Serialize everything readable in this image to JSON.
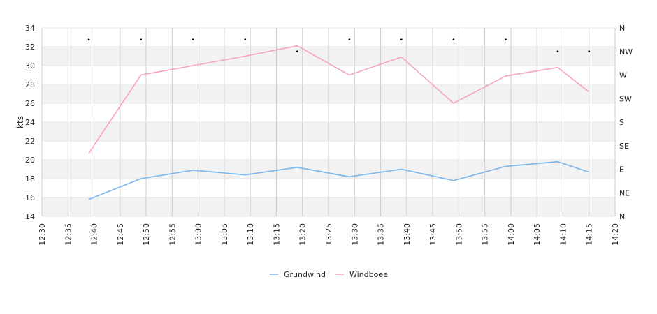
{
  "chart_data": {
    "type": "line",
    "xlabel": "",
    "ylabel": "kts",
    "ylim": [
      14,
      34
    ],
    "y_ticks": [
      14,
      16,
      18,
      20,
      22,
      24,
      26,
      28,
      30,
      32,
      34
    ],
    "x_ticks": [
      "12:30",
      "12:35",
      "12:40",
      "12:45",
      "12:50",
      "12:55",
      "13:00",
      "13:05",
      "13:10",
      "13:15",
      "13:20",
      "13:25",
      "13:30",
      "13:35",
      "13:40",
      "13:45",
      "13:50",
      "13:55",
      "14:00",
      "14:05",
      "14:10",
      "14:15",
      "14:20"
    ],
    "xlim_minutes": [
      0,
      110
    ],
    "y2_ticks": [
      "N",
      "NE",
      "E",
      "SE",
      "S",
      "SW",
      "W",
      "NW",
      "N"
    ],
    "series": [
      {
        "name": "Grundwind",
        "color": "#7cb5ec",
        "x": [
          "12:39",
          "12:49",
          "12:59",
          "13:09",
          "13:19",
          "13:29",
          "13:39",
          "13:49",
          "13:59",
          "14:09",
          "14:15"
        ],
        "values": [
          15.8,
          18.0,
          18.9,
          18.4,
          19.2,
          18.2,
          19.0,
          17.8,
          19.3,
          19.8,
          18.7
        ]
      },
      {
        "name": "Windboee",
        "color": "#f7a1c4",
        "x": [
          "12:39",
          "12:49",
          "12:59",
          "13:09",
          "13:19",
          "13:29",
          "13:39",
          "13:49",
          "13:59",
          "14:09",
          "14:15"
        ],
        "values": [
          20.7,
          29.0,
          30.0,
          31.0,
          32.1,
          29.0,
          30.9,
          26.0,
          28.9,
          29.8,
          27.2
        ]
      }
    ],
    "direction_markers": [
      {
        "x": "12:39",
        "dir": "NW"
      },
      {
        "x": "12:49",
        "dir": "NW"
      },
      {
        "x": "12:59",
        "dir": "NW"
      },
      {
        "x": "13:09",
        "dir": "NW"
      },
      {
        "x": "13:19",
        "dir": "NW"
      },
      {
        "x": "13:29",
        "dir": "NW"
      },
      {
        "x": "13:39",
        "dir": "NW"
      },
      {
        "x": "13:49",
        "dir": "NW"
      },
      {
        "x": "13:59",
        "dir": "NW"
      },
      {
        "x": "14:09",
        "dir": "NW"
      },
      {
        "x": "14:15",
        "dir": "NW"
      }
    ],
    "grid": true,
    "legend_position": "bottom-center"
  }
}
